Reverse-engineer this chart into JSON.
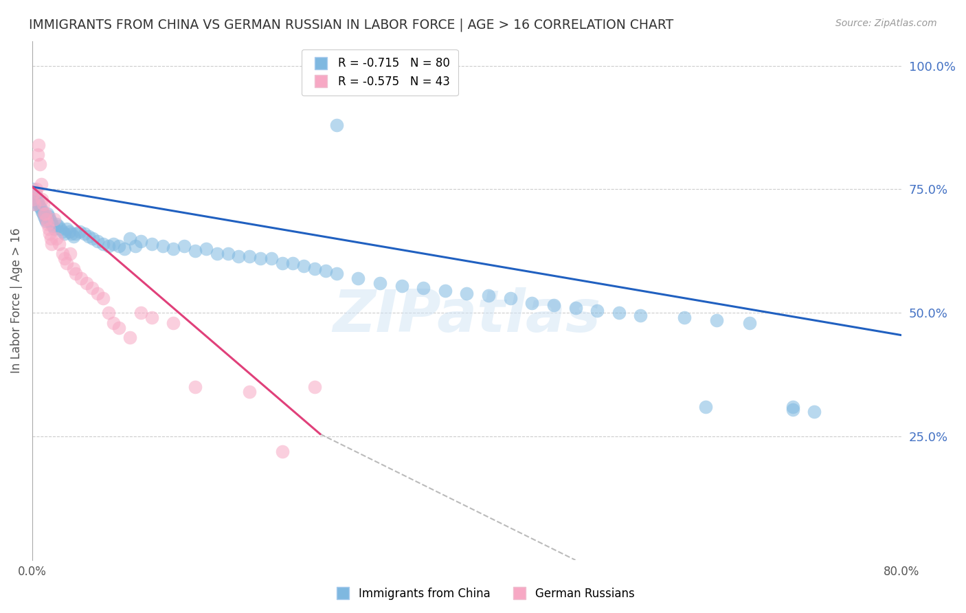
{
  "title": "IMMIGRANTS FROM CHINA VS GERMAN RUSSIAN IN LABOR FORCE | AGE > 16 CORRELATION CHART",
  "source": "Source: ZipAtlas.com",
  "ylabel": "In Labor Force | Age > 16",
  "xlim": [
    0.0,
    0.8
  ],
  "ylim": [
    0.0,
    1.05
  ],
  "yticks_right": [
    1.0,
    0.75,
    0.5,
    0.25
  ],
  "ytick_labels_right": [
    "100.0%",
    "75.0%",
    "50.0%",
    "25.0%"
  ],
  "xticks": [
    0.0,
    0.1,
    0.2,
    0.3,
    0.4,
    0.5,
    0.6,
    0.7,
    0.8
  ],
  "blue_scatter": {
    "name": "Immigrants from China",
    "color": "#7fb8e0",
    "x": [
      0.001,
      0.002,
      0.003,
      0.004,
      0.005,
      0.006,
      0.007,
      0.008,
      0.009,
      0.01,
      0.011,
      0.012,
      0.013,
      0.014,
      0.015,
      0.016,
      0.017,
      0.018,
      0.019,
      0.02,
      0.022,
      0.024,
      0.026,
      0.028,
      0.03,
      0.032,
      0.034,
      0.036,
      0.038,
      0.04,
      0.044,
      0.048,
      0.052,
      0.056,
      0.06,
      0.065,
      0.07,
      0.075,
      0.08,
      0.085,
      0.09,
      0.095,
      0.1,
      0.11,
      0.12,
      0.13,
      0.14,
      0.15,
      0.16,
      0.17,
      0.18,
      0.19,
      0.2,
      0.21,
      0.22,
      0.23,
      0.24,
      0.25,
      0.26,
      0.27,
      0.28,
      0.3,
      0.32,
      0.34,
      0.36,
      0.38,
      0.4,
      0.42,
      0.44,
      0.46,
      0.48,
      0.5,
      0.52,
      0.54,
      0.56,
      0.6,
      0.63,
      0.66,
      0.7,
      0.72
    ],
    "y": [
      0.75,
      0.72,
      0.74,
      0.73,
      0.725,
      0.72,
      0.715,
      0.71,
      0.705,
      0.7,
      0.695,
      0.69,
      0.685,
      0.7,
      0.695,
      0.69,
      0.685,
      0.68,
      0.675,
      0.67,
      0.68,
      0.675,
      0.67,
      0.665,
      0.66,
      0.67,
      0.665,
      0.66,
      0.655,
      0.66,
      0.665,
      0.66,
      0.655,
      0.65,
      0.645,
      0.64,
      0.635,
      0.64,
      0.635,
      0.63,
      0.65,
      0.635,
      0.645,
      0.64,
      0.635,
      0.63,
      0.635,
      0.625,
      0.63,
      0.62,
      0.62,
      0.615,
      0.615,
      0.61,
      0.61,
      0.6,
      0.6,
      0.595,
      0.59,
      0.585,
      0.58,
      0.57,
      0.56,
      0.555,
      0.55,
      0.545,
      0.54,
      0.535,
      0.53,
      0.52,
      0.515,
      0.51,
      0.505,
      0.5,
      0.495,
      0.49,
      0.485,
      0.48,
      0.31,
      0.3
    ]
  },
  "blue_outliers": {
    "x": [
      0.28,
      0.62,
      0.7
    ],
    "y": [
      0.88,
      0.31,
      0.305
    ]
  },
  "pink_scatter": {
    "name": "German Russians",
    "color": "#f7a8c4",
    "x": [
      0.001,
      0.002,
      0.003,
      0.004,
      0.005,
      0.006,
      0.007,
      0.008,
      0.009,
      0.01,
      0.011,
      0.012,
      0.013,
      0.014,
      0.015,
      0.016,
      0.017,
      0.018,
      0.02,
      0.022,
      0.025,
      0.028,
      0.03,
      0.032,
      0.035,
      0.038,
      0.04,
      0.045,
      0.05,
      0.055,
      0.06,
      0.065,
      0.07,
      0.075,
      0.08,
      0.09,
      0.1,
      0.11,
      0.13,
      0.15,
      0.2,
      0.23,
      0.26
    ],
    "y": [
      0.73,
      0.72,
      0.745,
      0.75,
      0.82,
      0.84,
      0.8,
      0.76,
      0.73,
      0.72,
      0.7,
      0.7,
      0.69,
      0.68,
      0.67,
      0.66,
      0.65,
      0.64,
      0.69,
      0.65,
      0.64,
      0.62,
      0.61,
      0.6,
      0.62,
      0.59,
      0.58,
      0.57,
      0.56,
      0.55,
      0.54,
      0.53,
      0.5,
      0.48,
      0.47,
      0.45,
      0.5,
      0.49,
      0.48,
      0.35,
      0.34,
      0.22,
      0.35
    ]
  },
  "blue_line": {
    "x_start": 0.0,
    "y_start": 0.755,
    "x_end": 0.8,
    "y_end": 0.455
  },
  "pink_line": {
    "x_start": 0.0,
    "y_start": 0.755,
    "x_end": 0.265,
    "y_end": 0.255
  },
  "dashed_line": {
    "x_start": 0.265,
    "y_start": 0.255,
    "x_end": 0.5,
    "y_end": 0.0
  },
  "watermark": "ZIPatlas",
  "title_color": "#333333",
  "axis_label_color": "#555555",
  "right_axis_color": "#4472c4",
  "grid_color": "#cccccc",
  "background_color": "#ffffff"
}
